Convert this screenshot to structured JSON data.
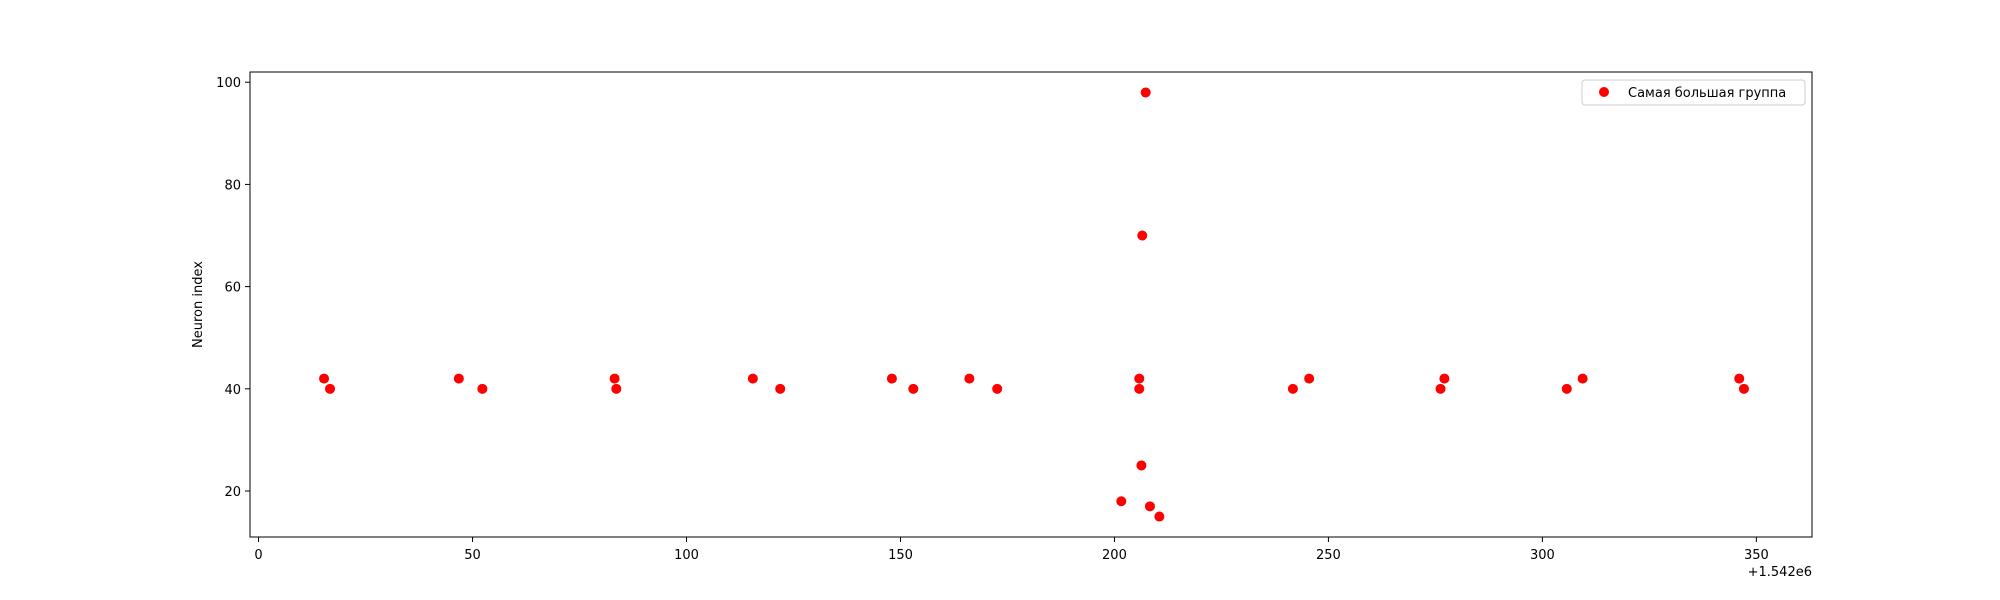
{
  "chart_data": {
    "type": "scatter",
    "title": "",
    "xlabel": "",
    "ylabel": "Neuron index",
    "x_offset_text": "+1.542e6",
    "xlim": [
      -2,
      363
    ],
    "ylim": [
      11,
      102
    ],
    "x_ticks": [
      0,
      50,
      100,
      150,
      200,
      250,
      300,
      350
    ],
    "y_ticks": [
      20,
      40,
      60,
      80,
      100
    ],
    "grid": false,
    "legend_position": "top-right",
    "series": [
      {
        "name": "Самая большая группа",
        "color": "#ff0000",
        "marker": "circle",
        "points": [
          {
            "x": 15.3,
            "y": 42
          },
          {
            "x": 16.7,
            "y": 40
          },
          {
            "x": 46.8,
            "y": 42
          },
          {
            "x": 52.3,
            "y": 40
          },
          {
            "x": 83.2,
            "y": 42
          },
          {
            "x": 83.6,
            "y": 40
          },
          {
            "x": 115.5,
            "y": 42
          },
          {
            "x": 121.9,
            "y": 40
          },
          {
            "x": 148.0,
            "y": 42
          },
          {
            "x": 153.0,
            "y": 40
          },
          {
            "x": 166.1,
            "y": 42
          },
          {
            "x": 172.6,
            "y": 40
          },
          {
            "x": 201.6,
            "y": 18
          },
          {
            "x": 205.8,
            "y": 42
          },
          {
            "x": 205.8,
            "y": 40
          },
          {
            "x": 206.3,
            "y": 25
          },
          {
            "x": 206.5,
            "y": 70
          },
          {
            "x": 207.3,
            "y": 98
          },
          {
            "x": 208.3,
            "y": 17
          },
          {
            "x": 210.5,
            "y": 15
          },
          {
            "x": 241.7,
            "y": 40
          },
          {
            "x": 245.5,
            "y": 42
          },
          {
            "x": 276.2,
            "y": 40
          },
          {
            "x": 277.1,
            "y": 42
          },
          {
            "x": 305.7,
            "y": 40
          },
          {
            "x": 309.4,
            "y": 42
          },
          {
            "x": 346.0,
            "y": 42
          },
          {
            "x": 347.1,
            "y": 40
          }
        ]
      }
    ]
  }
}
